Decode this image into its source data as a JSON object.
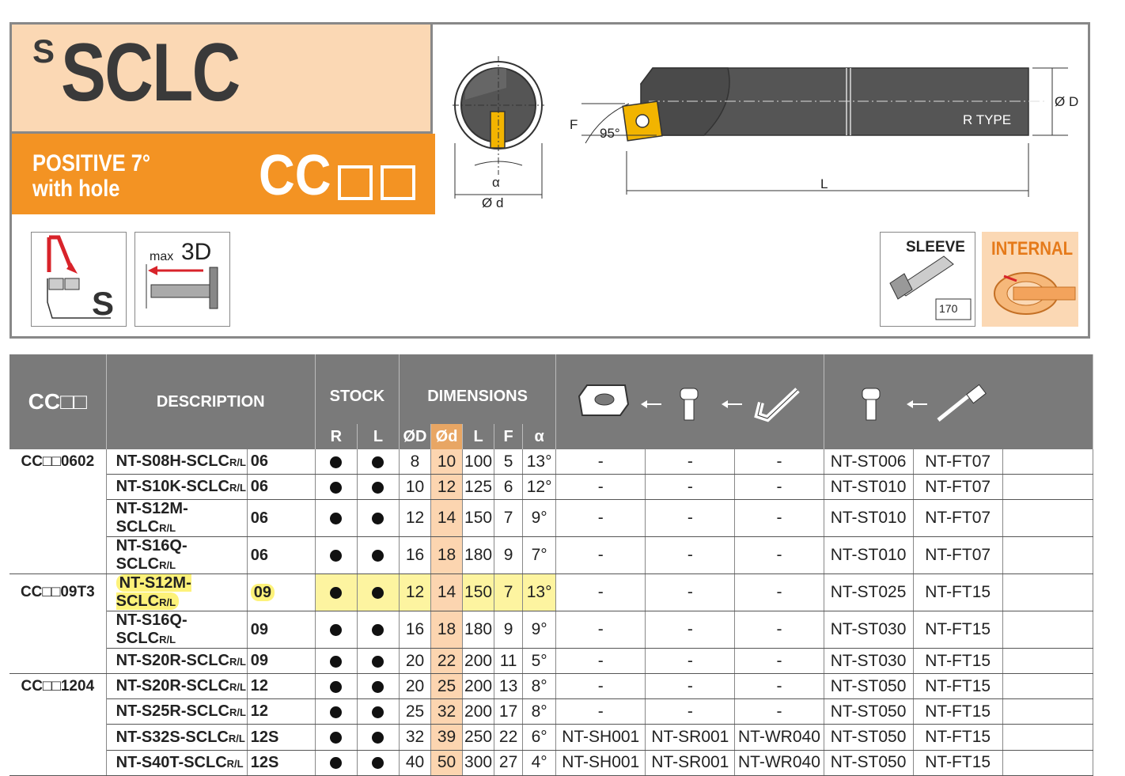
{
  "header": {
    "title_sup": "S",
    "title": "SCLC",
    "positive_line1": "POSITIVE 7°",
    "positive_line2": "with hole",
    "insert_code": "CC",
    "icon_max": "max",
    "icon_depth": "3D",
    "icon_s": "S",
    "sleeve_label": "SLEEVE",
    "sleeve_page": "170",
    "internal_label": "INTERNAL"
  },
  "drawing": {
    "alpha": "α",
    "od_small": "Ø d",
    "od_big": "Ø D",
    "f_label": "F",
    "angle": "95°",
    "l_label": "L",
    "r_type": "R TYPE"
  },
  "table": {
    "headers": {
      "code": "CC□□",
      "description": "DESCRIPTION",
      "stock": "STOCK",
      "r": "R",
      "l": "L",
      "dimensions": "DIMENSIONS",
      "oD": "ØD",
      "od": "Ød",
      "L": "L",
      "F": "F",
      "alpha": "α"
    },
    "rows": [
      {
        "group": "CC□□0602",
        "desc": "NT-S08H-SCLC",
        "size": "06",
        "D": "8",
        "d": "10",
        "L": "100",
        "F": "5",
        "a": "13°",
        "sh": "-",
        "sr": "-",
        "wr": "-",
        "st": "NT-ST006",
        "ft": "NT-FT07"
      },
      {
        "group": "",
        "desc": "NT-S10K-SCLC",
        "size": "06",
        "D": "10",
        "d": "12",
        "L": "125",
        "F": "6",
        "a": "12°",
        "sh": "-",
        "sr": "-",
        "wr": "-",
        "st": "NT-ST010",
        "ft": "NT-FT07"
      },
      {
        "group": "",
        "desc": "NT-S12M-SCLC",
        "size": "06",
        "D": "12",
        "d": "14",
        "L": "150",
        "F": "7",
        "a": "9°",
        "sh": "-",
        "sr": "-",
        "wr": "-",
        "st": "NT-ST010",
        "ft": "NT-FT07"
      },
      {
        "group": "",
        "desc": "NT-S16Q-SCLC",
        "size": "06",
        "D": "16",
        "d": "18",
        "L": "180",
        "F": "9",
        "a": "7°",
        "sh": "-",
        "sr": "-",
        "wr": "-",
        "st": "NT-ST010",
        "ft": "NT-FT07"
      },
      {
        "group": "CC□□09T3",
        "desc": "NT-S12M-SCLC",
        "size": "09",
        "D": "12",
        "d": "14",
        "L": "150",
        "F": "7",
        "a": "13°",
        "sh": "-",
        "sr": "-",
        "wr": "-",
        "st": "NT-ST025",
        "ft": "NT-FT15"
      },
      {
        "group": "",
        "desc": "NT-S16Q-SCLC",
        "size": "09",
        "D": "16",
        "d": "18",
        "L": "180",
        "F": "9",
        "a": "9°",
        "sh": "-",
        "sr": "-",
        "wr": "-",
        "st": "NT-ST030",
        "ft": "NT-FT15"
      },
      {
        "group": "",
        "desc": "NT-S20R-SCLC",
        "size": "09",
        "D": "20",
        "d": "22",
        "L": "200",
        "F": "11",
        "a": "5°",
        "sh": "-",
        "sr": "-",
        "wr": "-",
        "st": "NT-ST030",
        "ft": "NT-FT15"
      },
      {
        "group": "CC□□1204",
        "desc": "NT-S20R-SCLC",
        "size": "12",
        "D": "20",
        "d": "25",
        "L": "200",
        "F": "13",
        "a": "8°",
        "sh": "-",
        "sr": "-",
        "wr": "-",
        "st": "NT-ST050",
        "ft": "NT-FT15"
      },
      {
        "group": "",
        "desc": "NT-S25R-SCLC",
        "size": "12",
        "D": "25",
        "d": "32",
        "L": "200",
        "F": "17",
        "a": "8°",
        "sh": "-",
        "sr": "-",
        "wr": "-",
        "st": "NT-ST050",
        "ft": "NT-FT15"
      },
      {
        "group": "",
        "desc": "NT-S32S-SCLC",
        "size": "12S",
        "D": "32",
        "d": "39",
        "L": "250",
        "F": "22",
        "a": "6°",
        "sh": "NT-SH001",
        "sr": "NT-SR001",
        "wr": "NT-WR040",
        "st": "NT-ST050",
        "ft": "NT-FT15"
      },
      {
        "group": "",
        "desc": "NT-S40T-SCLC",
        "size": "12S",
        "D": "40",
        "d": "50",
        "L": "300",
        "F": "27",
        "a": "4°",
        "sh": "NT-SH001",
        "sr": "NT-SR001",
        "wr": "NT-WR040",
        "st": "NT-ST050",
        "ft": "NT-FT15"
      }
    ],
    "rl_suffix": "R/L",
    "highlight_row": 4
  },
  "colors": {
    "orange": "#f39323",
    "peach": "#fbd8b4",
    "header_gray": "#7a7a7a",
    "od_column": "#fcd5b0",
    "highlight": "#fdf27a"
  }
}
